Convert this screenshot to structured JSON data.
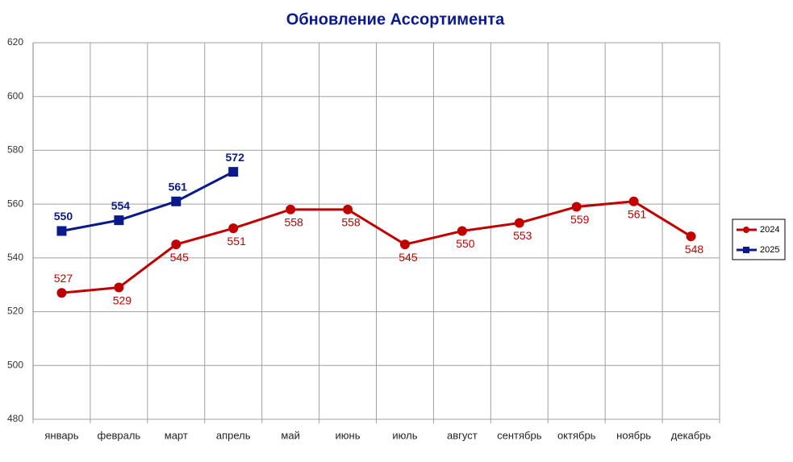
{
  "chart_data": {
    "type": "line",
    "title": "Обновление Ассортимента",
    "categories": [
      "январь",
      "февраль",
      "март",
      "апрель",
      "май",
      "июнь",
      "июль",
      "август",
      "сентябрь",
      "октябрь",
      "ноябрь",
      "декабрь"
    ],
    "series": [
      {
        "name": "2024",
        "color": "#c00000",
        "marker": "circle",
        "values": [
          527,
          529,
          545,
          551,
          558,
          558,
          545,
          550,
          553,
          559,
          561,
          548
        ]
      },
      {
        "name": "2025",
        "color": "#0a1a8c",
        "marker": "square",
        "values": [
          550,
          554,
          561,
          572,
          null,
          null,
          null,
          null,
          null,
          null,
          null,
          null
        ]
      }
    ],
    "ylim": [
      480,
      620
    ],
    "yticks": [
      480,
      500,
      520,
      540,
      560,
      580,
      600,
      620
    ],
    "grid": true,
    "legend": "right"
  }
}
